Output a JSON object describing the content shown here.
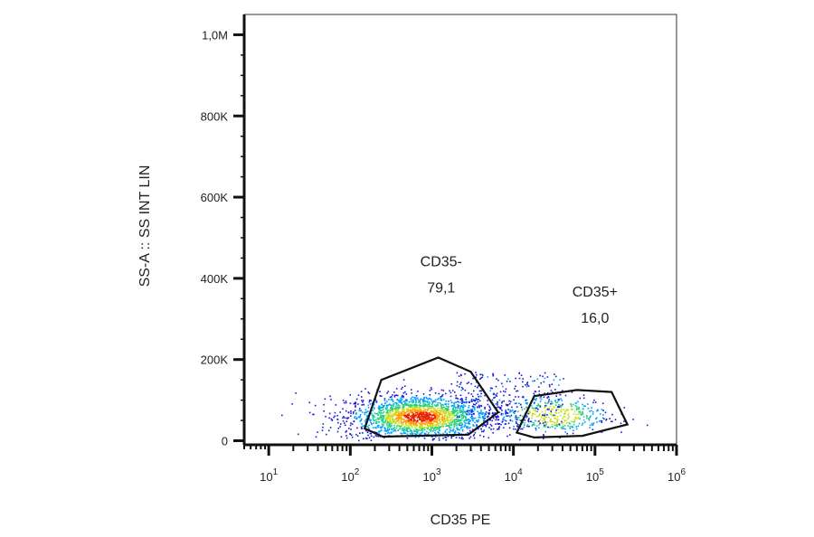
{
  "chart_data": {
    "type": "scatter",
    "xlabel": "CD35 PE",
    "ylabel": "SS-A :: SS INT LIN",
    "x_scale": "log",
    "x_range": [
      5,
      1000000
    ],
    "y_range": [
      -10000,
      1050000
    ],
    "x_ticks": [
      {
        "base": "10",
        "exp": "1",
        "value": 10
      },
      {
        "base": "10",
        "exp": "2",
        "value": 100
      },
      {
        "base": "10",
        "exp": "3",
        "value": 1000
      },
      {
        "base": "10",
        "exp": "4",
        "value": 10000
      },
      {
        "base": "10",
        "exp": "5",
        "value": 100000
      },
      {
        "base": "10",
        "exp": "6",
        "value": 1000000
      }
    ],
    "y_ticks": [
      {
        "label": "0",
        "value": 0
      },
      {
        "label": "200K",
        "value": 200000
      },
      {
        "label": "400K",
        "value": 400000
      },
      {
        "label": "600K",
        "value": 600000
      },
      {
        "label": "800K",
        "value": 800000
      },
      {
        "label": "1,0M",
        "value": 1000000
      }
    ],
    "populations": [
      {
        "name": "CD35-",
        "x_center": 700,
        "y_center": 60000,
        "x_spread_log": 0.45,
        "y_spread": 28000,
        "weight": 0.79
      },
      {
        "name": "CD35+",
        "x_center": 30000,
        "y_center": 65000,
        "x_spread_log": 0.35,
        "y_spread": 25000,
        "weight": 0.16
      }
    ],
    "gates": [
      {
        "name": "CD35-",
        "value": "79,1",
        "label_x": 1300,
        "label_y": 430000,
        "vertices": [
          [
            150,
            30000
          ],
          [
            240,
            150000
          ],
          [
            1200,
            205000
          ],
          [
            3000,
            170000
          ],
          [
            6500,
            70000
          ],
          [
            2800,
            15000
          ],
          [
            250,
            10000
          ]
        ]
      },
      {
        "name": "CD35+",
        "value": "16,0",
        "label_x": 100000,
        "label_y": 355000,
        "vertices": [
          [
            11000,
            20000
          ],
          [
            18000,
            110000
          ],
          [
            60000,
            125000
          ],
          [
            160000,
            120000
          ],
          [
            250000,
            40000
          ],
          [
            70000,
            12000
          ],
          [
            18000,
            8000
          ]
        ]
      }
    ],
    "density_colors": [
      "#1a1ad8",
      "#00a0ff",
      "#20d080",
      "#c8e020",
      "#ffa000",
      "#e82000"
    ]
  }
}
